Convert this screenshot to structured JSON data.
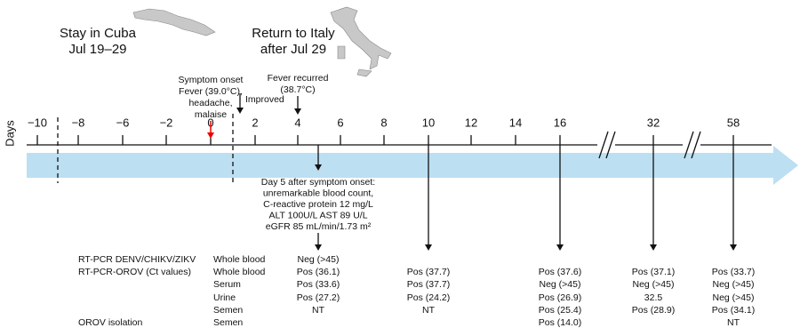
{
  "header": {
    "cuba": {
      "title": "Stay in Cuba",
      "dates": "Jul 19–29"
    },
    "italy": {
      "title": "Return  to Italy",
      "dates": "after Jul 29"
    }
  },
  "events": {
    "onset": [
      "Symptom onset",
      "Fever (39.0°C),",
      "headache,",
      "malaise"
    ],
    "improved": "Improved",
    "recurred": [
      "Fever recurred",
      "(38.7°C)"
    ]
  },
  "axis": {
    "label": "Days",
    "ticks": [
      "−10",
      "−8",
      "−6",
      "−2",
      "0",
      "2",
      "4",
      "6",
      "8",
      "10",
      "12",
      "14",
      "16",
      "32",
      "58"
    ]
  },
  "day5_note": [
    "Day 5 after symptom onset:",
    "unremarkable blood count,",
    "C-reactive protein 12 mg/L",
    "ALT 100U/L AST 89 U/L",
    "eGFR 85 mL/min/1.73 m²"
  ],
  "table": {
    "rows": [
      {
        "test": "RT-PCR DENV/CHIKV/ZIKV",
        "specimen": "Whole blood",
        "cells": [
          "Neg (>45)",
          null,
          null,
          null,
          null
        ]
      },
      {
        "test": "RT-PCR-OROV (Ct values)",
        "specimen": "Whole blood",
        "cells": [
          "Pos (36.1)",
          "Pos (37.7)",
          "Pos (37.6)",
          "Pos (37.1)",
          "Pos (33.7)"
        ]
      },
      {
        "test": null,
        "specimen": "Serum",
        "cells": [
          "Pos (33.6)",
          "Pos (37.7)",
          "Neg (>45)",
          "Neg (>45)",
          "Neg (>45)"
        ]
      },
      {
        "test": null,
        "specimen": "Urine",
        "cells": [
          "Pos (27.2)",
          "Pos (24.2)",
          "Pos (26.9)",
          "32.5",
          "Neg (>45)"
        ]
      },
      {
        "test": null,
        "specimen": "Semen",
        "cells": [
          "NT",
          "NT",
          "Pos (25.4)",
          "Pos (28.9)",
          "Pos (34.1)"
        ]
      },
      {
        "test": "OROV isolation",
        "specimen": "Semen",
        "cells": [
          null,
          null,
          "Pos (14.0)",
          null,
          "NT"
        ]
      }
    ]
  }
}
